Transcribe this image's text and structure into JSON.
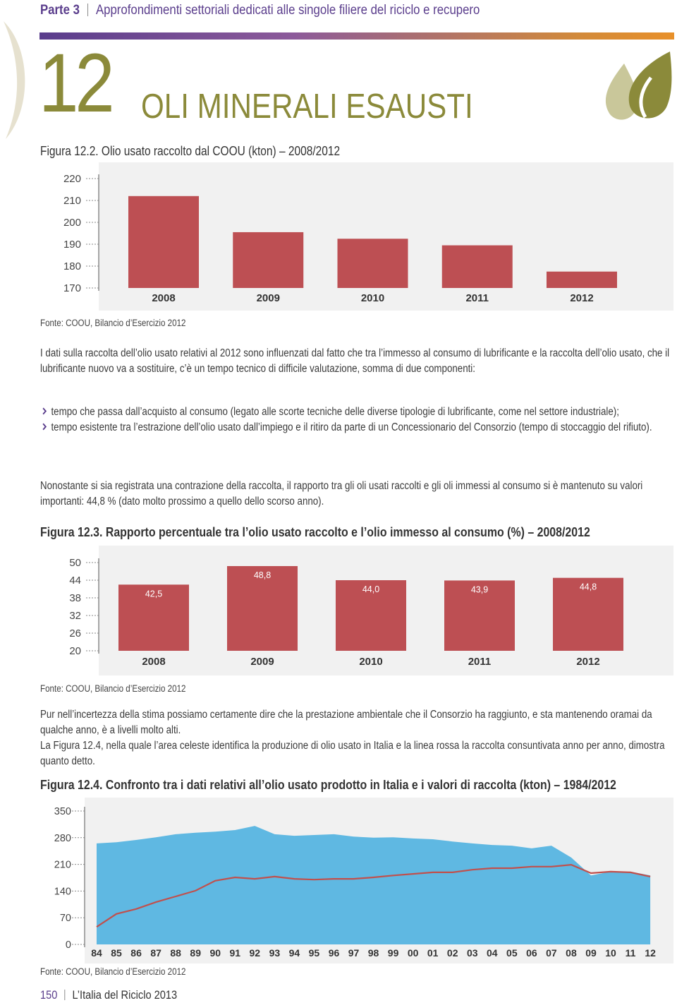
{
  "header": {
    "part": "Parte 3",
    "section": "Approfondimenti settoriali dedicati alle singole filiere del riciclo e recupero"
  },
  "chapter": {
    "number": "12",
    "title": "OLI MINERALI ESAUSTI"
  },
  "chart_data": [
    {
      "type": "bar",
      "title": "Figura 12.2. Olio usato raccolto dal COOU (kton) – 2008/2012",
      "categories": [
        "2008",
        "2009",
        "2010",
        "2011",
        "2012"
      ],
      "values": [
        212,
        195.5,
        192.5,
        189.5,
        177.5
      ],
      "color": "#bd4f53",
      "ylim": [
        170,
        220
      ],
      "yticks": [
        170,
        180,
        190,
        200,
        210,
        220
      ],
      "source": "Fonte: COOU, Bilancio d’Esercizio 2012"
    },
    {
      "type": "bar",
      "title": "Figura 12.3. Rapporto percentuale tra l’olio usato raccolto e l’olio immesso al consumo (%) – 2008/2012",
      "categories": [
        "2008",
        "2009",
        "2010",
        "2011",
        "2012"
      ],
      "values": [
        42.5,
        48.8,
        44.0,
        43.9,
        44.8
      ],
      "value_labels": [
        "42,5",
        "48,8",
        "44,0",
        "43,9",
        "44,8"
      ],
      "color": "#bd4f53",
      "ylim": [
        20,
        50
      ],
      "yticks": [
        20,
        26,
        32,
        38,
        44,
        50
      ],
      "source": "Fonte: COOU, Bilancio d’Esercizio 2012"
    },
    {
      "type": "line",
      "title": "Figura 12.4. Confronto tra i dati relativi all’olio usato prodotto in Italia e i valori di raccolta (kton) – 1984/2012",
      "categories": [
        "84",
        "85",
        "86",
        "87",
        "88",
        "89",
        "90",
        "91",
        "92",
        "93",
        "94",
        "95",
        "96",
        "97",
        "98",
        "99",
        "00",
        "01",
        "02",
        "03",
        "04",
        "05",
        "06",
        "07",
        "08",
        "09",
        "10",
        "11",
        "12"
      ],
      "series": [
        {
          "color": "#5fb8e2",
          "area": true,
          "values": [
            265,
            268,
            274,
            281,
            289,
            293,
            296,
            300,
            311,
            289,
            285,
            287,
            289,
            283,
            280,
            281,
            278,
            276,
            270,
            265,
            261,
            259,
            252,
            259,
            228,
            181,
            191,
            191,
            181
          ]
        },
        {
          "color": "#c0504d",
          "area": false,
          "values": [
            46,
            80,
            93,
            111,
            126,
            141,
            167,
            176,
            172,
            178,
            172,
            170,
            172,
            172,
            176,
            181,
            185,
            189,
            189,
            196,
            200,
            200,
            204,
            204,
            209,
            187,
            191,
            189,
            178
          ]
        }
      ],
      "ylim": [
        0,
        350
      ],
      "yticks": [
        0,
        70,
        140,
        210,
        280,
        350
      ],
      "source": "Fonte: COOU, Bilancio d’Esercizio 2012"
    }
  ],
  "paragraphs": [
    "I dati sulla raccolta dell’olio usato relativi al 2012 sono influenzati dal fatto che tra l’immesso al consumo di lubrificante e la raccolta dell’olio usato, che il lubrificante nuovo va a sostituire, c’è un tempo tecnico di difficile valutazione, somma di due componenti:",
    "Nonostante si sia registrata una contrazione della raccolta, il rapporto tra gli oli usati raccolti e gli oli immessi al consumo si è mantenuto su valori importanti: 44,8 % (dato molto prossimo a quello dello scorso anno).",
    "Pur nell’incertezza della stima possiamo certamente dire che la prestazione ambientale che il Consorzio ha raggiunto, e sta mantenendo oramai da qualche anno, è a livelli molto alti.",
    "La Figura 12.4, nella quale l’area celeste identifica la produzione di olio usato in Italia e la linea rossa la raccolta consuntivata anno per anno, dimostra quanto detto."
  ],
  "bullets": [
    "tempo che passa dall’acquisto al consumo (legato alle scorte tecniche delle diverse tipologie di lubrificante, come nel settore industriale);",
    "tempo esistente tra l’estrazione dell’olio usato dall’impiego e il ritiro da parte di un Concessionario del Consorzio (tempo di stoccaggio del rifiuto)."
  ],
  "footer": {
    "page": "150",
    "publication": "L’Italia del Riciclo 2013"
  }
}
